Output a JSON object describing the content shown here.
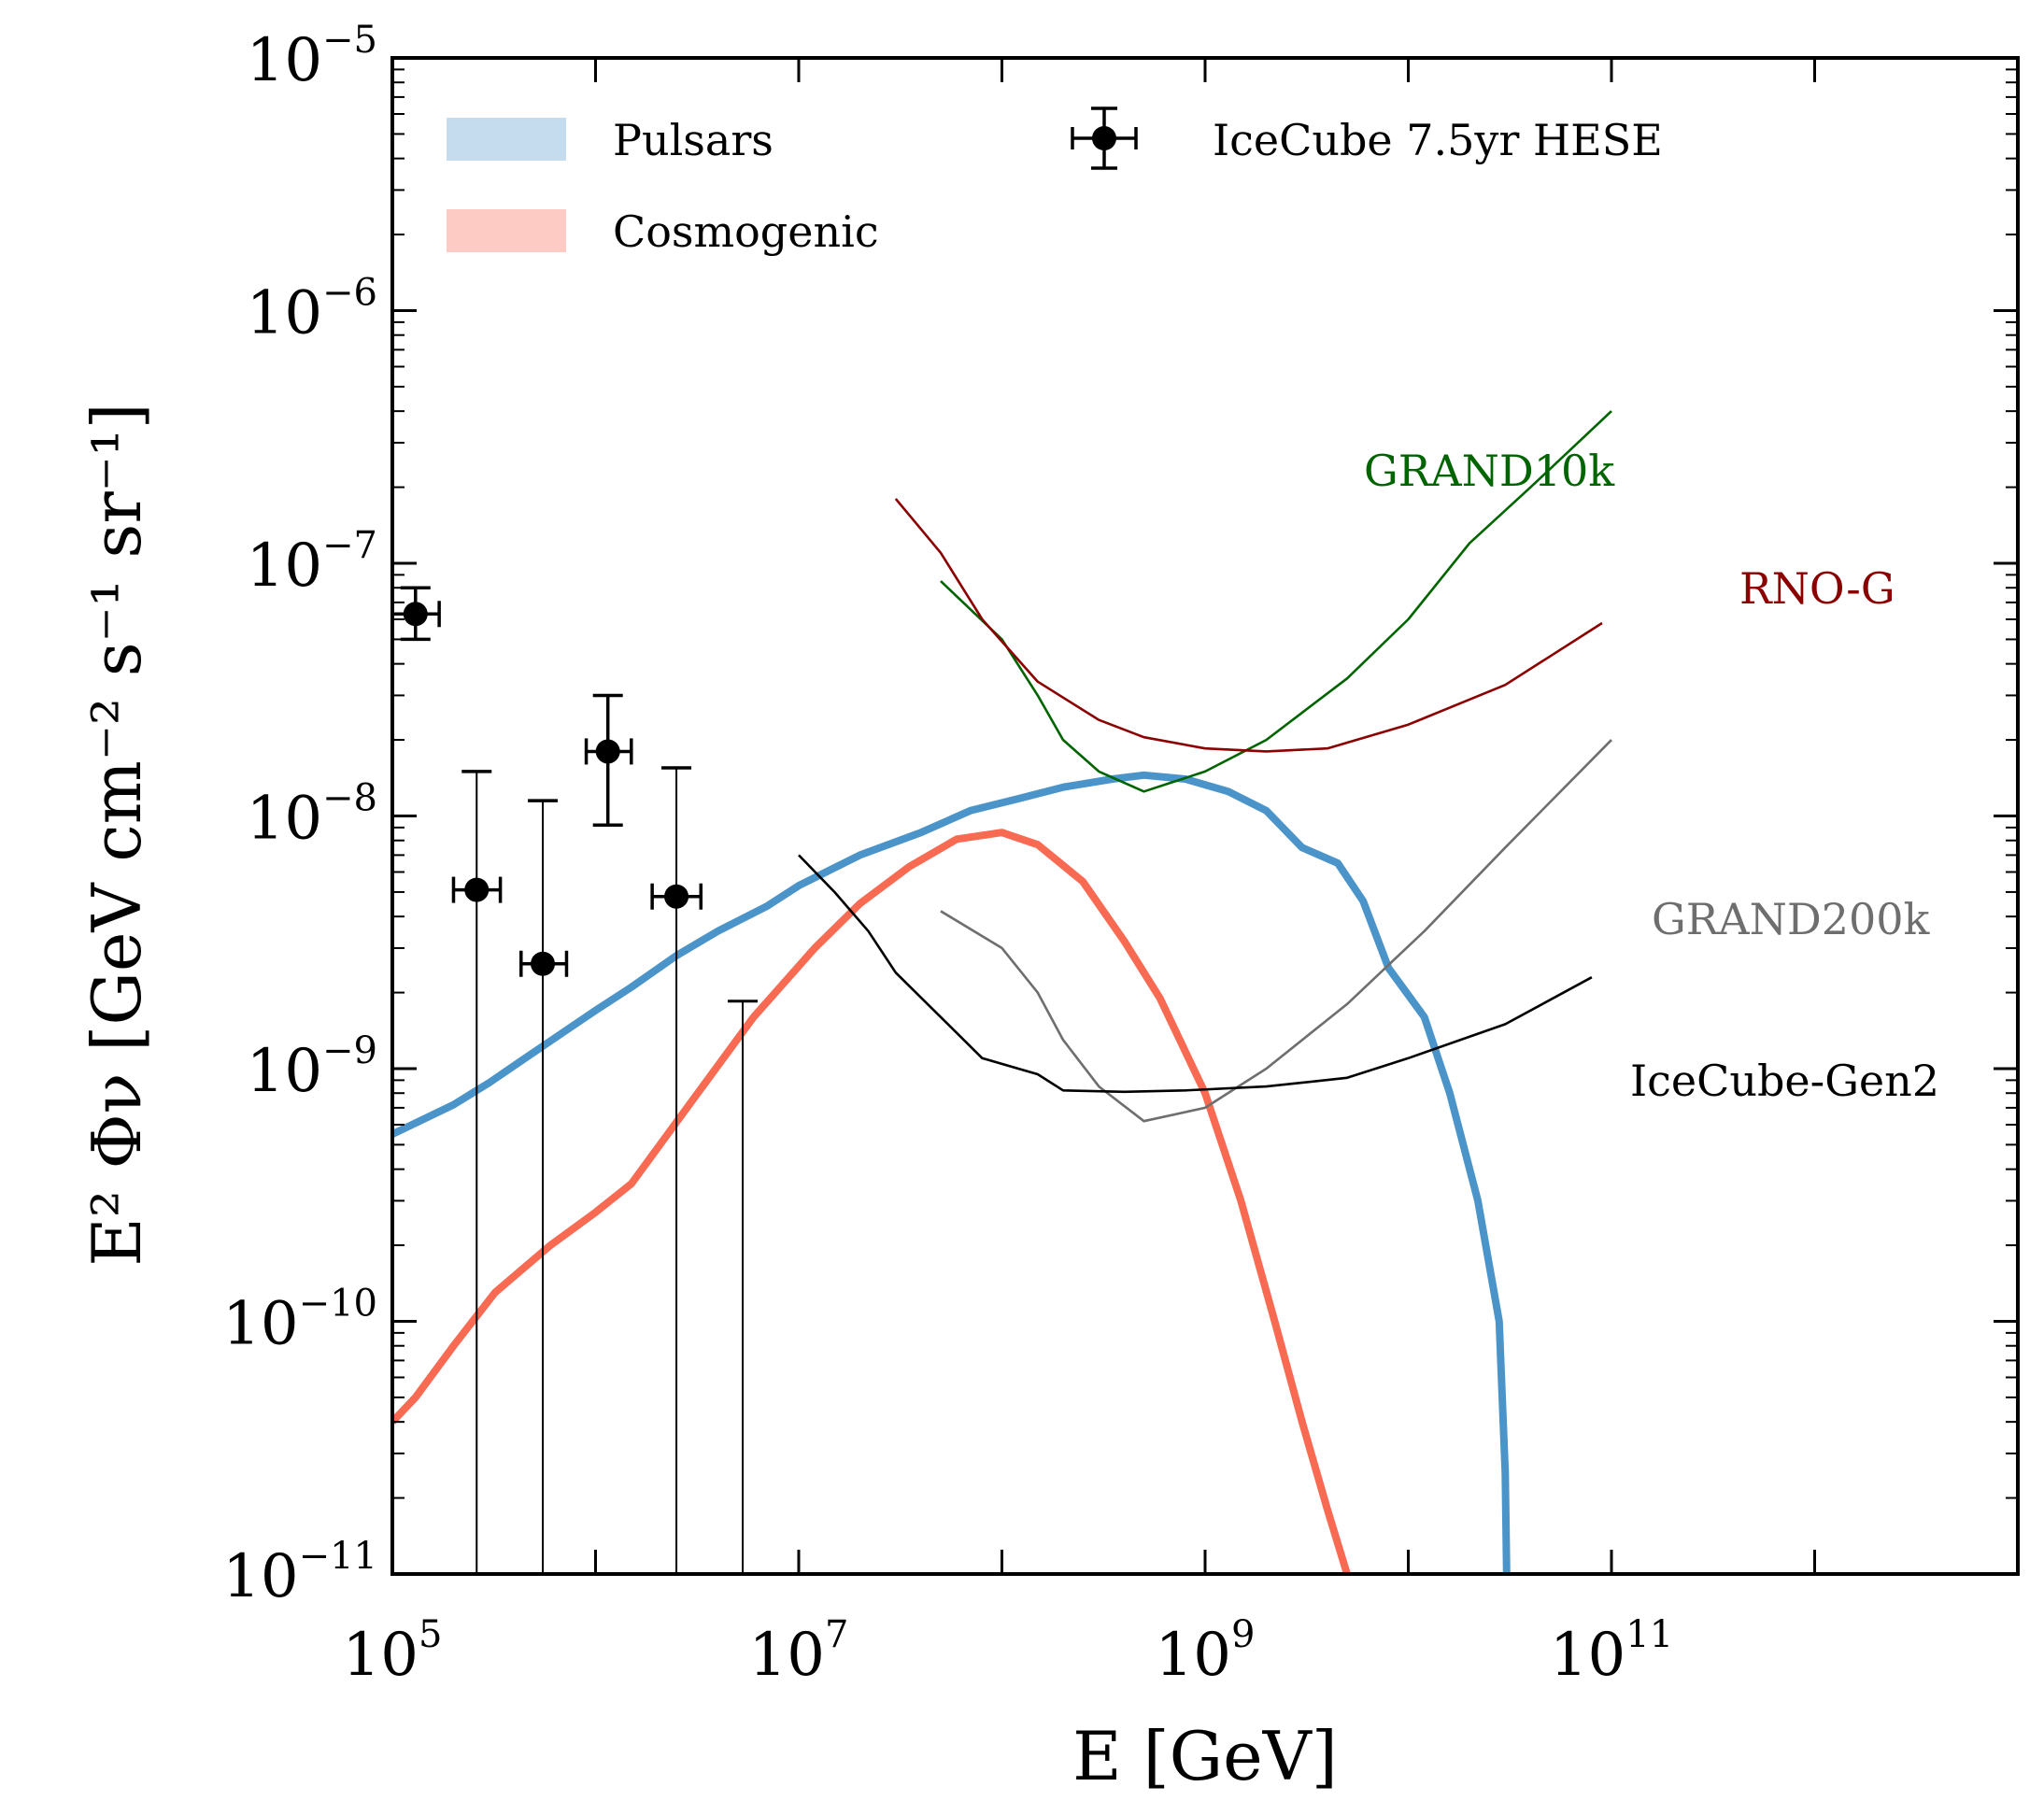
{
  "chart_data": {
    "type": "line",
    "xlabel": "E [GeV]",
    "ylabel": "E² Φν [GeV cm⁻² s⁻¹ sr⁻¹]",
    "xscale": "log",
    "yscale": "log",
    "xlim": [
      100000,
      10000000000000
    ],
    "ylim": [
      1e-11,
      1e-05
    ],
    "x_ticks": [
      {
        "value": 100000,
        "base": "10",
        "exp": "5"
      },
      {
        "value": 10000000,
        "base": "10",
        "exp": "7"
      },
      {
        "value": 1000000000,
        "base": "10",
        "exp": "9"
      },
      {
        "value": 100000000000,
        "base": "10",
        "exp": "11"
      }
    ],
    "y_ticks": [
      {
        "value": 1e-11,
        "base": "10",
        "exp": "−11"
      },
      {
        "value": 1e-10,
        "base": "10",
        "exp": "−10"
      },
      {
        "value": 1e-09,
        "base": "10",
        "exp": "−9"
      },
      {
        "value": 1e-08,
        "base": "10",
        "exp": "−8"
      },
      {
        "value": 1e-07,
        "base": "10",
        "exp": "−7"
      },
      {
        "value": 1e-06,
        "base": "10",
        "exp": "−6"
      },
      {
        "value": 1e-05,
        "base": "10",
        "exp": "−5"
      }
    ],
    "legend": {
      "placement": "top",
      "entries": [
        {
          "label": "Pulsars",
          "color": "#c4dcee"
        },
        {
          "label": "Cosmogenic",
          "color": "#fecac4"
        },
        {
          "label": "IceCube 7.5yr HESE",
          "color": "#000000"
        }
      ]
    },
    "series": [
      {
        "name": "Pulsars",
        "color": "#4b94c9",
        "points": [
          [
            100000.0,
            5.5e-10
          ],
          [
            200000.0,
            7.2e-10
          ],
          [
            300000.0,
            8.8e-10
          ],
          [
            450000.0,
            1.1e-09
          ],
          [
            700000.0,
            1.4e-09
          ],
          [
            1000000.0,
            1.7e-09
          ],
          [
            1500000.0,
            2.1e-09
          ],
          [
            2500000.0,
            2.8e-09
          ],
          [
            4000000.0,
            3.5e-09
          ],
          [
            7000000.0,
            4.4e-09
          ],
          [
            10000000.0,
            5.3e-09
          ],
          [
            20000000.0,
            7e-09
          ],
          [
            40000000.0,
            8.6e-09
          ],
          [
            70000000.0,
            1.05e-08
          ],
          [
            120000000.0,
            1.17e-08
          ],
          [
            200000000.0,
            1.3e-08
          ],
          [
            350000000.0,
            1.4e-08
          ],
          [
            500000000.0,
            1.45e-08
          ],
          [
            800000000.0,
            1.4e-08
          ],
          [
            1300000000.0,
            1.25e-08
          ],
          [
            2000000000.0,
            1.05e-08
          ],
          [
            3000000000.0,
            7.5e-09
          ],
          [
            4500000000.0,
            6.5e-09
          ],
          [
            6000000000.0,
            4.6e-09
          ],
          [
            8000000000.0,
            2.5e-09
          ],
          [
            12000000000.0,
            1.6e-09
          ],
          [
            16000000000.0,
            8e-10
          ],
          [
            22000000000.0,
            3e-10
          ],
          [
            28000000000.0,
            1e-10
          ],
          [
            30000000000.0,
            2.5e-11
          ],
          [
            30500000000.0,
            1e-11
          ]
        ]
      },
      {
        "name": "Cosmogenic",
        "color": "#f96a53",
        "points": [
          [
            100000.0,
            4e-11
          ],
          [
            130000.0,
            5e-11
          ],
          [
            200000.0,
            8e-11
          ],
          [
            320000.0,
            1.3e-10
          ],
          [
            600000.0,
            2e-10
          ],
          [
            1000000.0,
            2.7e-10
          ],
          [
            1500000.0,
            3.5e-10
          ],
          [
            3000000.0,
            7.5e-10
          ],
          [
            6000000.0,
            1.6e-09
          ],
          [
            12000000.0,
            3e-09
          ],
          [
            20000000.0,
            4.5e-09
          ],
          [
            35000000.0,
            6.3e-09
          ],
          [
            60000000.0,
            8.1e-09
          ],
          [
            100000000.0,
            8.6e-09
          ],
          [
            150000000.0,
            7.7e-09
          ],
          [
            250000000.0,
            5.5e-09
          ],
          [
            400000000.0,
            3.2e-09
          ],
          [
            600000000.0,
            1.9e-09
          ],
          [
            1000000000.0,
            8e-10
          ],
          [
            1500000000.0,
            3e-10
          ],
          [
            2200000000.0,
            1e-10
          ],
          [
            3000000000.0,
            4e-11
          ],
          [
            4000000000.0,
            1.8e-11
          ],
          [
            5000000000.0,
            1e-11
          ]
        ]
      },
      {
        "name": "GRAND10k",
        "label": "GRAND10k",
        "color": "#006400",
        "points": [
          [
            50000000.0,
            8.5e-08
          ],
          [
            100000000.0,
            5e-08
          ],
          [
            150000000.0,
            3e-08
          ],
          [
            200000000.0,
            2e-08
          ],
          [
            300000000.0,
            1.5e-08
          ],
          [
            500000000.0,
            1.25e-08
          ],
          [
            1000000000.0,
            1.5e-08
          ],
          [
            2000000000.0,
            2e-08
          ],
          [
            5000000000.0,
            3.5e-08
          ],
          [
            10000000000.0,
            6e-08
          ],
          [
            20000000000.0,
            1.2e-07
          ],
          [
            40000000000.0,
            2e-07
          ],
          [
            100000000000.0,
            4e-07
          ]
        ]
      },
      {
        "name": "RNO-G",
        "label": "RNO-G",
        "color": "#8b0000",
        "points": [
          [
            30000000.0,
            1.8e-07
          ],
          [
            50000000.0,
            1.1e-07
          ],
          [
            80000000.0,
            6e-08
          ],
          [
            150000000.0,
            3.4e-08
          ],
          [
            300000000.0,
            2.4e-08
          ],
          [
            500000000.0,
            2.05e-08
          ],
          [
            1000000000.0,
            1.85e-08
          ],
          [
            2000000000.0,
            1.8e-08
          ],
          [
            4000000000.0,
            1.85e-08
          ],
          [
            10000000000.0,
            2.3e-08
          ],
          [
            30000000000.0,
            3.3e-08
          ],
          [
            90000000000.0,
            5.8e-08
          ]
        ]
      },
      {
        "name": "GRAND200k",
        "label": "GRAND200k",
        "color": "#6e6e6e",
        "points": [
          [
            50000000.0,
            4.2e-09
          ],
          [
            100000000.0,
            3e-09
          ],
          [
            150000000.0,
            2e-09
          ],
          [
            200000000.0,
            1.3e-09
          ],
          [
            300000000.0,
            8.5e-10
          ],
          [
            500000000.0,
            6.2e-10
          ],
          [
            1000000000.0,
            7e-10
          ],
          [
            2000000000.0,
            1e-09
          ],
          [
            5000000000.0,
            1.8e-09
          ],
          [
            12000000000.0,
            3.5e-09
          ],
          [
            30000000000.0,
            7.5e-09
          ],
          [
            100000000000.0,
            2e-08
          ]
        ]
      },
      {
        "name": "IceCube-Gen2",
        "label": "IceCube-Gen2",
        "color": "#000000",
        "points": [
          [
            10000000.0,
            7e-09
          ],
          [
            15000000.0,
            5e-09
          ],
          [
            22000000.0,
            3.5e-09
          ],
          [
            30000000.0,
            2.4e-09
          ],
          [
            50000000.0,
            1.6e-09
          ],
          [
            80000000.0,
            1.1e-09
          ],
          [
            150000000.0,
            9.5e-10
          ],
          [
            200000000.0,
            8.2e-10
          ],
          [
            400000000.0,
            8.1e-10
          ],
          [
            800000000.0,
            8.2e-10
          ],
          [
            2000000000.0,
            8.5e-10
          ],
          [
            5000000000.0,
            9.2e-10
          ],
          [
            10000000000.0,
            1.1e-09
          ],
          [
            30000000000.0,
            1.5e-09
          ],
          [
            80000000000.0,
            2.3e-09
          ]
        ]
      }
    ],
    "hese_points": [
      {
        "x": 130000.0,
        "y": 6.3e-08,
        "xlo": 100000.0,
        "xhi": 170000.0,
        "ylo": 5e-08,
        "yhi": 8e-08
      },
      {
        "x": 260000.0,
        "y": 5.1e-09,
        "xlo": 200000.0,
        "xhi": 340000.0,
        "ylo": null,
        "yhi": 1.5e-08
      },
      {
        "x": 550000.0,
        "y": 2.6e-09,
        "xlo": 430000.0,
        "xhi": 720000.0,
        "ylo": null,
        "yhi": 1.15e-08
      },
      {
        "x": 1150000.0,
        "y": 1.8e-08,
        "xlo": 900000.0,
        "xhi": 1500000.0,
        "ylo": 9.2e-09,
        "yhi": 3e-08
      },
      {
        "x": 2500000.0,
        "y": 4.8e-09,
        "xlo": 1900000.0,
        "xhi": 3300000.0,
        "ylo": null,
        "yhi": 1.55e-08
      },
      {
        "x": 5300000.0,
        "y": null,
        "xlo": null,
        "xhi": null,
        "ylo": null,
        "yhi": 1.85e-09
      }
    ]
  }
}
